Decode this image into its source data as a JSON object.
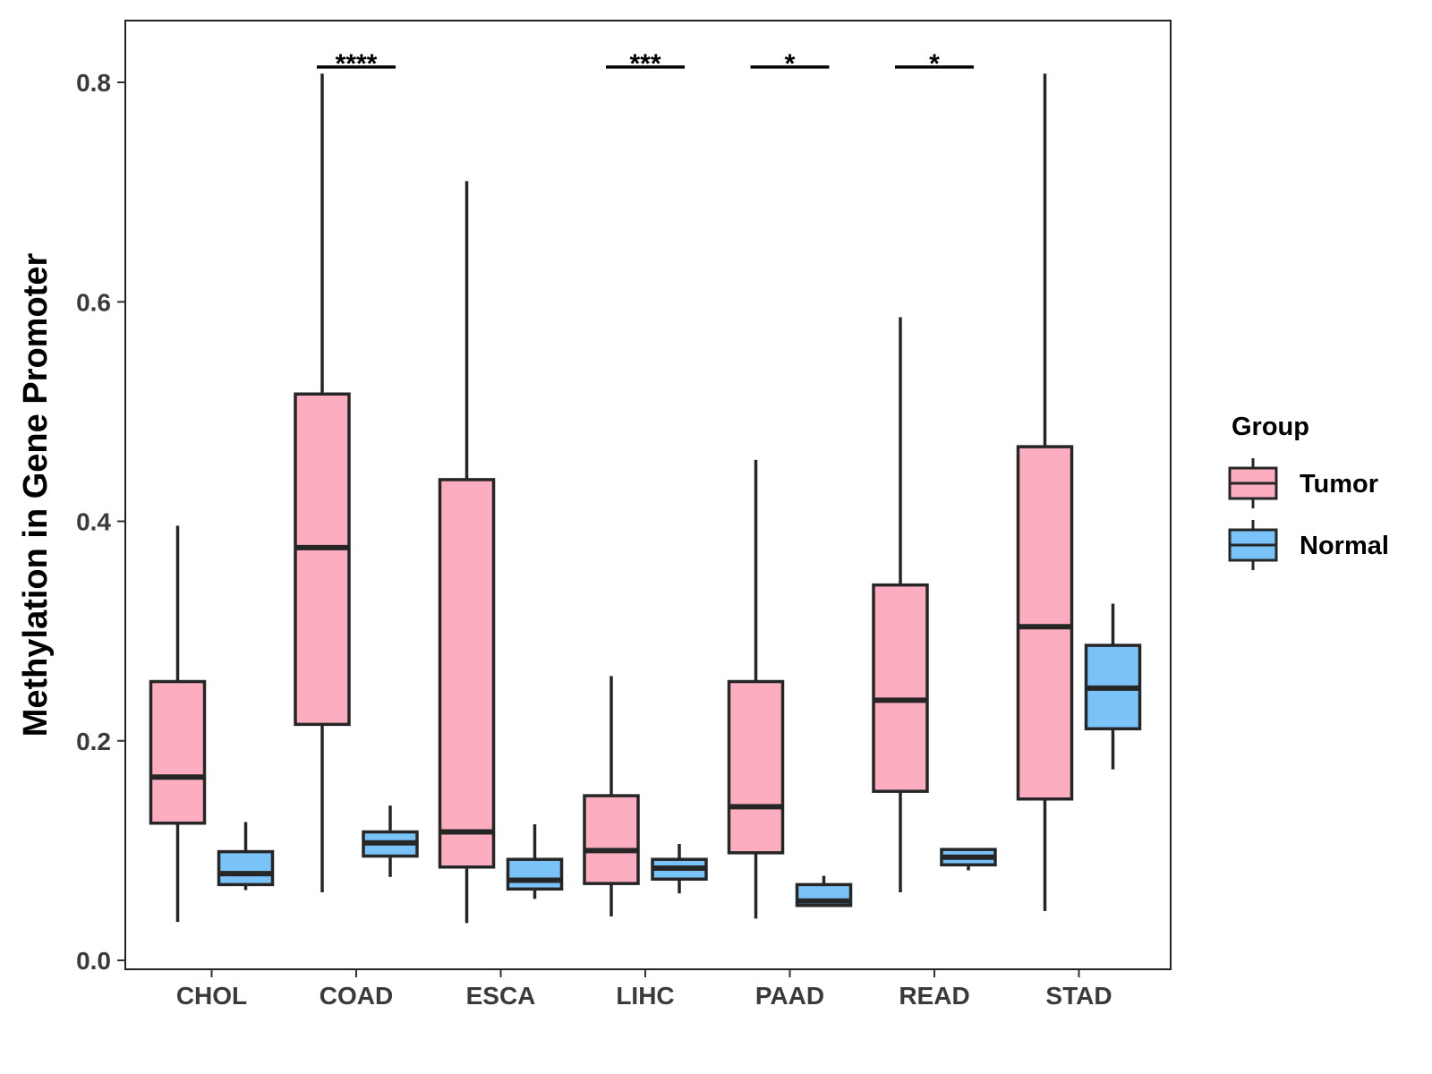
{
  "chart_data": {
    "type": "boxplot",
    "title": "",
    "xlabel": "",
    "ylabel": "Methylation in Gene Promoter",
    "ylim": [
      0,
      0.86
    ],
    "yticks": [
      "0.0",
      "0.2",
      "0.4",
      "0.6",
      "0.8"
    ],
    "categories": [
      "CHOL",
      "COAD",
      "ESCA",
      "LIHC",
      "PAAD",
      "READ",
      "STAD"
    ],
    "legend": {
      "title": "Group",
      "entries": [
        {
          "name": "Tumor",
          "color": "#FCAEC0"
        },
        {
          "name": "Normal",
          "color": "#7AC3F8"
        }
      ]
    },
    "series": [
      {
        "name": "Tumor",
        "color": "#FCAEC0",
        "boxes": [
          {
            "category": "CHOL",
            "min": 0.035,
            "q1": 0.125,
            "median": 0.167,
            "q3": 0.254,
            "max": 0.396
          },
          {
            "category": "COAD",
            "min": 0.062,
            "q1": 0.215,
            "median": 0.376,
            "q3": 0.516,
            "max": 0.808
          },
          {
            "category": "ESCA",
            "min": 0.034,
            "q1": 0.085,
            "median": 0.117,
            "q3": 0.438,
            "max": 0.71
          },
          {
            "category": "LIHC",
            "min": 0.04,
            "q1": 0.07,
            "median": 0.1,
            "q3": 0.15,
            "max": 0.259
          },
          {
            "category": "PAAD",
            "min": 0.038,
            "q1": 0.098,
            "median": 0.14,
            "q3": 0.254,
            "max": 0.456
          },
          {
            "category": "READ",
            "min": 0.062,
            "q1": 0.154,
            "median": 0.237,
            "q3": 0.342,
            "max": 0.586
          },
          {
            "category": "STAD",
            "min": 0.045,
            "q1": 0.147,
            "median": 0.304,
            "q3": 0.468,
            "max": 0.808
          }
        ]
      },
      {
        "name": "Normal",
        "color": "#7AC3F8",
        "boxes": [
          {
            "category": "CHOL",
            "min": 0.064,
            "q1": 0.069,
            "median": 0.079,
            "q3": 0.099,
            "max": 0.126
          },
          {
            "category": "COAD",
            "min": 0.076,
            "q1": 0.095,
            "median": 0.107,
            "q3": 0.117,
            "max": 0.141
          },
          {
            "category": "ESCA",
            "min": 0.056,
            "q1": 0.065,
            "median": 0.073,
            "q3": 0.092,
            "max": 0.124
          },
          {
            "category": "LIHC",
            "min": 0.061,
            "q1": 0.074,
            "median": 0.084,
            "q3": 0.092,
            "max": 0.106
          },
          {
            "category": "PAAD",
            "min": 0.049,
            "q1": 0.05,
            "median": 0.054,
            "q3": 0.069,
            "max": 0.077
          },
          {
            "category": "READ",
            "min": 0.082,
            "q1": 0.087,
            "median": 0.094,
            "q3": 0.101,
            "max": 0.101
          },
          {
            "category": "STAD",
            "min": 0.174,
            "q1": 0.211,
            "median": 0.248,
            "q3": 0.287,
            "max": 0.325
          }
        ]
      }
    ],
    "significance": [
      {
        "category": "COAD",
        "label": "****",
        "y": 0.814
      },
      {
        "category": "LIHC",
        "label": "***",
        "y": 0.814
      },
      {
        "category": "PAAD",
        "label": "*",
        "y": 0.814
      },
      {
        "category": "READ",
        "label": "*",
        "y": 0.814
      }
    ]
  }
}
